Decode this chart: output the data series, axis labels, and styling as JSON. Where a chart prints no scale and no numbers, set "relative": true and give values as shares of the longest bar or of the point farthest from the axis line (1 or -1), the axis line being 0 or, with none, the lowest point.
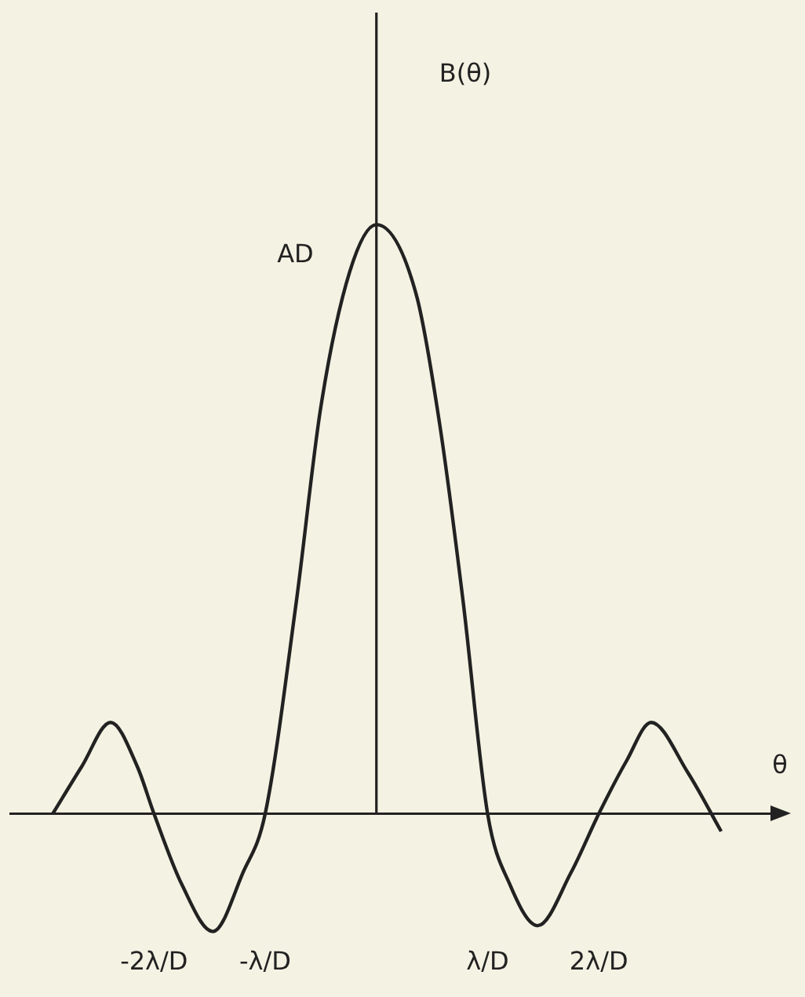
{
  "chart_data": {
    "type": "line",
    "relative": true,
    "xlabel": "θ",
    "color": "#222222",
    "marker": "none",
    "line_style": "solid",
    "annotations": [
      "AD",
      "B(θ)"
    ],
    "xlim": [
      -3.3,
      3.6
    ],
    "xticks": [
      {
        "value": -2,
        "label": "-2λ/D"
      },
      {
        "value": -1,
        "label": "-λ/D"
      },
      {
        "value": 1,
        "label": "λ/D"
      },
      {
        "value": 2,
        "label": "2λ/D"
      }
    ],
    "x": [
      -2.91,
      -2.65,
      -2.39,
      -2.15,
      -2.0,
      -1.75,
      -1.47,
      -1.2,
      -1.0,
      -0.72,
      -0.5,
      -0.24,
      0,
      0.36,
      0.57,
      0.78,
      1.0,
      1.2,
      1.45,
      1.75,
      2.0,
      2.25,
      2.47,
      2.8,
      3.1
    ],
    "values": [
      0,
      0.08,
      0.155,
      0.08,
      0,
      -0.12,
      -0.2,
      -0.1,
      0,
      0.36,
      0.69,
      0.92,
      1,
      0.88,
      0.66,
      0.36,
      0,
      -0.12,
      -0.19,
      -0.1,
      0,
      0.09,
      0.155,
      0.07,
      -0.03
    ]
  }
}
